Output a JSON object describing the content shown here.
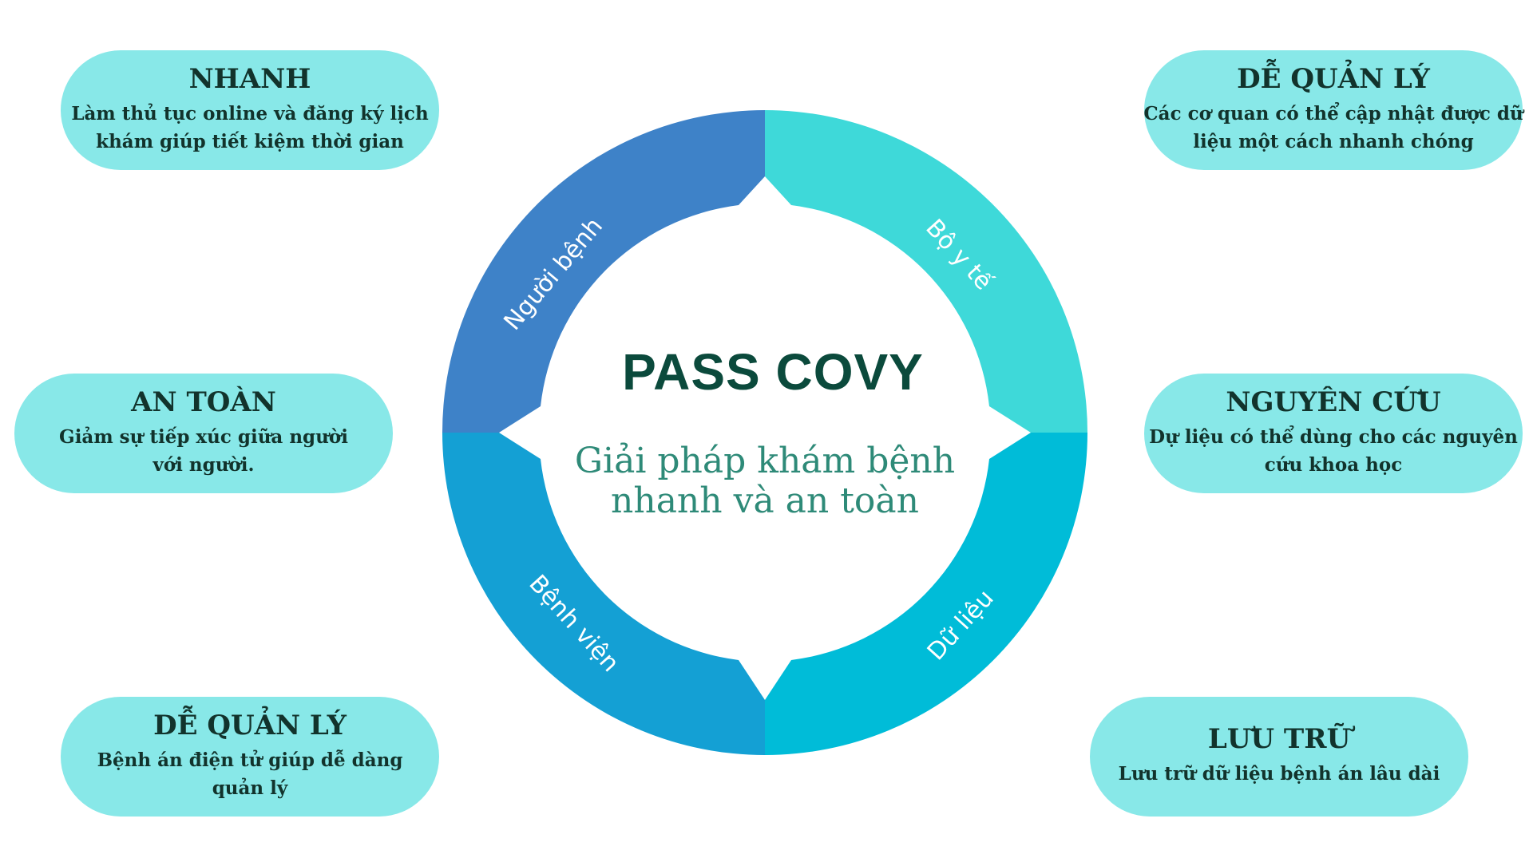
{
  "center": {
    "title": "PASS COVY",
    "subtitle_line1": "Giải pháp khám bệnh",
    "subtitle_line2": "nhanh và an toàn"
  },
  "segments": [
    {
      "label": "Người bệnh",
      "color": "#3e82c8"
    },
    {
      "label": "Bộ y tế",
      "color": "#3ed9d9"
    },
    {
      "label": "Dữ liệu",
      "color": "#00bcd8"
    },
    {
      "label": "Bệnh viện",
      "color": "#14a0d4"
    }
  ],
  "cards": [
    {
      "title": "NHANH",
      "lines": [
        "Làm thủ tục online và đăng ký lịch",
        "khám giúp tiết kiệm thời gian"
      ]
    },
    {
      "title": "AN TOÀN",
      "lines": [
        "Giảm sự tiếp xúc giữa người",
        "với người."
      ]
    },
    {
      "title": "DỄ QUẢN LÝ",
      "lines": [
        "Bệnh án điện tử giúp dễ dàng",
        "quản lý"
      ]
    },
    {
      "title": "DỄ QUẢN LÝ",
      "lines": [
        "Các cơ quan có thể cập nhật được dữ",
        "liệu một cách nhanh chóng"
      ]
    },
    {
      "title": "NGUYÊN CỨU",
      "lines": [
        "Dự liệu có thể dùng cho các nguyên",
        "cứu khoa học"
      ]
    },
    {
      "title": "LƯU TRỮ",
      "lines": [
        "Lưu trữ dữ liệu bệnh án lâu dài"
      ]
    }
  ],
  "colors": {
    "card_bg": "#88e8e8",
    "card_text": "#12332c"
  }
}
